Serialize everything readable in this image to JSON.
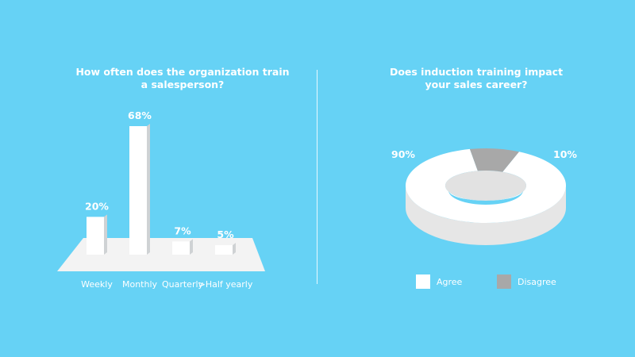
{
  "colors": {
    "background": "#66d2f5",
    "bar_front": "#ffffff",
    "bar_side": "#cfd2d4",
    "floor": "#f3f3f3",
    "agree": "#ffffff",
    "disagree": "#a8a8a8"
  },
  "chart_data": [
    {
      "type": "bar",
      "title": "How often does the organization train\na salesperson?",
      "categories": [
        "Weekly",
        "Monthly",
        "Quarterly",
        ">Half yearly"
      ],
      "values": [
        20,
        68,
        7,
        5
      ],
      "value_labels": [
        "20%",
        "68%",
        "7%",
        "5%"
      ],
      "unit": "%"
    },
    {
      "type": "pie",
      "title": "Does induction training impact\nyour sales career?",
      "labels": [
        "Agree",
        "Disagree"
      ],
      "values": [
        90,
        10
      ],
      "value_labels": [
        "90%",
        "10%"
      ],
      "legend": "bottom"
    }
  ]
}
